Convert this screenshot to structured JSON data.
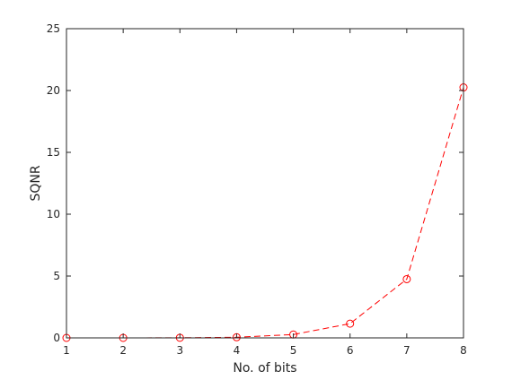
{
  "chart_data": {
    "type": "line",
    "title": "",
    "xlabel": "No. of bits",
    "ylabel": "SQNR",
    "xlim": [
      1,
      8
    ],
    "ylim": [
      0,
      25
    ],
    "x_ticks": [
      1,
      2,
      3,
      4,
      5,
      6,
      7,
      8
    ],
    "y_ticks": [
      0,
      5,
      10,
      15,
      20,
      25
    ],
    "grid": false,
    "legend": "none",
    "series": [
      {
        "color": "#ff0000",
        "line_style": "dashed",
        "marker": "circle",
        "x": [
          1,
          2,
          3,
          4,
          5,
          6,
          7,
          8
        ],
        "y": [
          0.0,
          0.0,
          0.01,
          0.05,
          0.27,
          1.15,
          4.75,
          20.25
        ]
      }
    ]
  }
}
